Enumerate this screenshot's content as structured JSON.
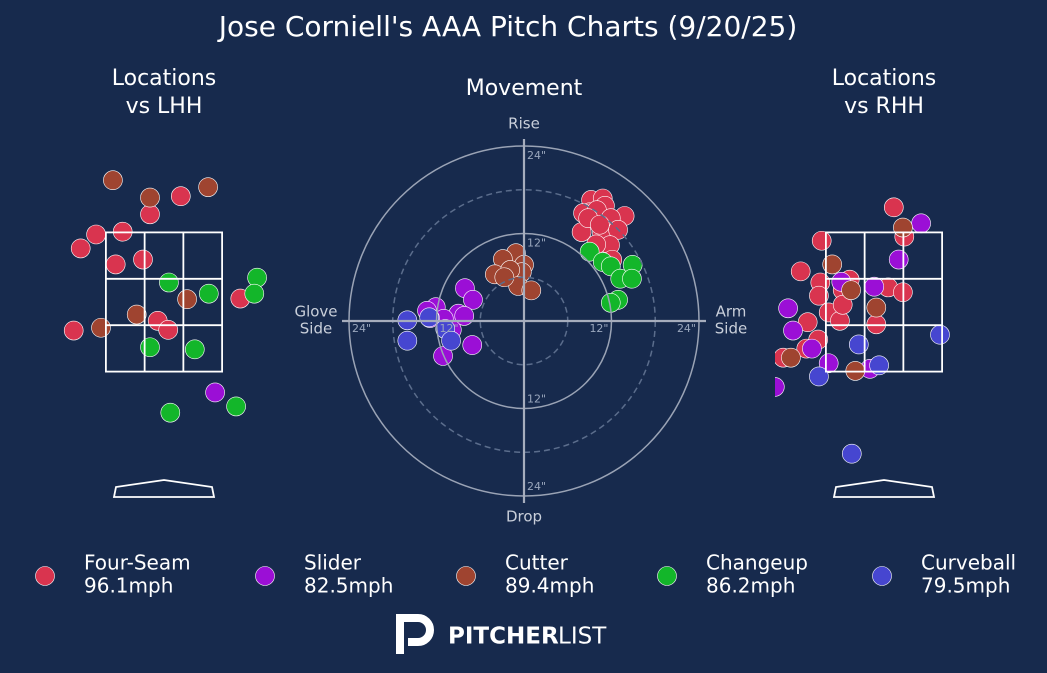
{
  "title": "Jose Corniell's AAA Pitch Charts (9/20/25)",
  "brand": {
    "bold": "PITCHER",
    "light": "LIST"
  },
  "chart_data": [
    {
      "type": "scatter",
      "title": [
        "Locations",
        "vs LHH"
      ],
      "xlim": [
        -1.6,
        1.6
      ],
      "ylim": [
        0,
        5
      ],
      "zone_x": [
        -0.83,
        0.83
      ],
      "zone_y": [
        1.5,
        3.5
      ],
      "series": [
        {
          "color": "#d9344f",
          "x": [
            -1.19,
            -0.97,
            -0.59,
            -0.2,
            0.24,
            -0.69,
            -0.3,
            1.09,
            -1.29,
            -0.09,
            0.06
          ],
          "y": [
            3.27,
            3.47,
            3.51,
            3.76,
            4.02,
            3.04,
            3.11,
            2.55,
            2.09,
            2.23,
            2.1
          ]
        },
        {
          "color": "#9b0fd6",
          "x": [
            0.73
          ],
          "y": [
            1.2
          ]
        },
        {
          "color": "#9f4430",
          "x": [
            -0.73,
            -0.2,
            0.63,
            0.33,
            -0.39,
            -0.9
          ],
          "y": [
            4.25,
            4.0,
            4.15,
            2.54,
            2.32,
            2.13
          ]
        },
        {
          "color": "#13b62a",
          "x": [
            1.33,
            1.29,
            0.64,
            0.07,
            -0.2,
            0.44,
            1.03,
            0.09
          ],
          "y": [
            2.85,
            2.62,
            2.62,
            2.78,
            1.85,
            1.82,
            1.0,
            0.91
          ]
        }
      ]
    },
    {
      "type": "scatter",
      "title": [
        "Movement"
      ],
      "xlim": [
        -24,
        24
      ],
      "ylim": [
        -24,
        24
      ],
      "rticks": [
        {
          "value": 12,
          "label": "12\""
        },
        {
          "value": 24,
          "label": "24\""
        }
      ],
      "minor_rticks": [
        6,
        18
      ],
      "label_top": "Rise",
      "label_bottom": "Drop",
      "label_left": [
        "Glove",
        "Side"
      ],
      "label_right": [
        "Arm",
        "Side"
      ],
      "series": [
        {
          "name": "Four-Seam",
          "speed": "96.1mph",
          "color": "#d9344f",
          "x": [
            9.2,
            10.8,
            9.0,
            11.1,
            8.1,
            10.0,
            13.8,
            11.9,
            7.9,
            10.7,
            12.9,
            11.8,
            9.9,
            11.1,
            12.1,
            8.8,
            10.4
          ],
          "y": [
            16.6,
            16.8,
            14.9,
            15.8,
            14.8,
            15.2,
            14.4,
            14.1,
            12.2,
            12.1,
            12.5,
            10.4,
            10.5,
            8.1,
            8.4,
            14.1,
            13.2
          ]
        },
        {
          "name": "Slider",
          "speed": "82.5mph",
          "color": "#9b0fd6",
          "x": [
            -8.1,
            -7.0,
            -12.1,
            -13.3,
            -9.0,
            -8.2,
            -11.0,
            -12.9,
            -9.9,
            -7.1,
            -11.1
          ],
          "y": [
            4.5,
            2.9,
            1.9,
            1.4,
            1.0,
            0.7,
            0.3,
            0.4,
            -1.2,
            -3.3,
            -4.8
          ]
        },
        {
          "name": "Cutter",
          "speed": "89.4mph",
          "color": "#9f4430",
          "x": [
            -1.1,
            -2.9,
            0,
            -4.0,
            -0.3,
            -1.9,
            -0.8,
            1.0,
            -2.7
          ],
          "y": [
            9.3,
            8.5,
            7.7,
            6.4,
            6.7,
            7.0,
            4.8,
            4.2,
            6.0
          ]
        },
        {
          "name": "Changeup",
          "speed": "86.2mph",
          "color": "#13b62a",
          "x": [
            9.0,
            10.8,
            11.9,
            13.2,
            14.9,
            14.8,
            12.9,
            11.9
          ],
          "y": [
            9.5,
            8.1,
            7.5,
            5.8,
            7.7,
            5.8,
            2.9,
            2.5
          ]
        },
        {
          "name": "Curveball",
          "speed": "79.5mph",
          "color": "#4646d0",
          "x": [
            -16.0,
            -13.0,
            -10.8,
            -16.0,
            -10.0
          ],
          "y": [
            0.1,
            0.5,
            -1.1,
            -2.7,
            -2.7
          ]
        }
      ]
    },
    {
      "type": "scatter",
      "title": [
        "Locations",
        "vs RHH"
      ],
      "xlim": [
        -1.6,
        1.6
      ],
      "ylim": [
        0,
        5
      ],
      "zone_x": [
        -0.83,
        0.83
      ],
      "zone_y": [
        1.5,
        3.5
      ],
      "series": [
        {
          "color": "#d9344f",
          "x": [
            0.14,
            0.29,
            -0.89,
            -1.19,
            -0.91,
            -0.93,
            -0.59,
            -0.49,
            0.06,
            0.27,
            -1.09,
            -0.94,
            -1.11,
            -0.79,
            -0.63,
            -0.11,
            -1.44,
            -0.59
          ],
          "y": [
            3.86,
            3.44,
            3.38,
            2.94,
            2.78,
            2.59,
            2.67,
            2.82,
            2.71,
            2.64,
            2.21,
            1.96,
            1.83,
            2.35,
            2.23,
            2.18,
            1.7,
            2.46
          ]
        },
        {
          "color": "#9b0fd6",
          "x": [
            0.53,
            0.21,
            -1.37,
            -1.3,
            -1.03,
            -0.79,
            -0.2,
            -1.56,
            -0.61,
            -0.14
          ],
          "y": [
            3.63,
            3.11,
            2.41,
            2.09,
            1.83,
            1.62,
            1.54,
            1.28,
            2.79,
            2.72
          ]
        },
        {
          "color": "#9f4430",
          "x": [
            0.27,
            -0.74,
            -0.47,
            -0.11,
            -1.33,
            -0.41
          ],
          "y": [
            3.57,
            3.04,
            2.67,
            2.42,
            1.7,
            1.51
          ]
        },
        {
          "color": "#4646d0",
          "x": [
            0.8,
            -0.36,
            -0.07,
            -0.93,
            -0.46
          ],
          "y": [
            2.03,
            1.89,
            1.59,
            1.43,
            0.32
          ]
        }
      ]
    }
  ]
}
